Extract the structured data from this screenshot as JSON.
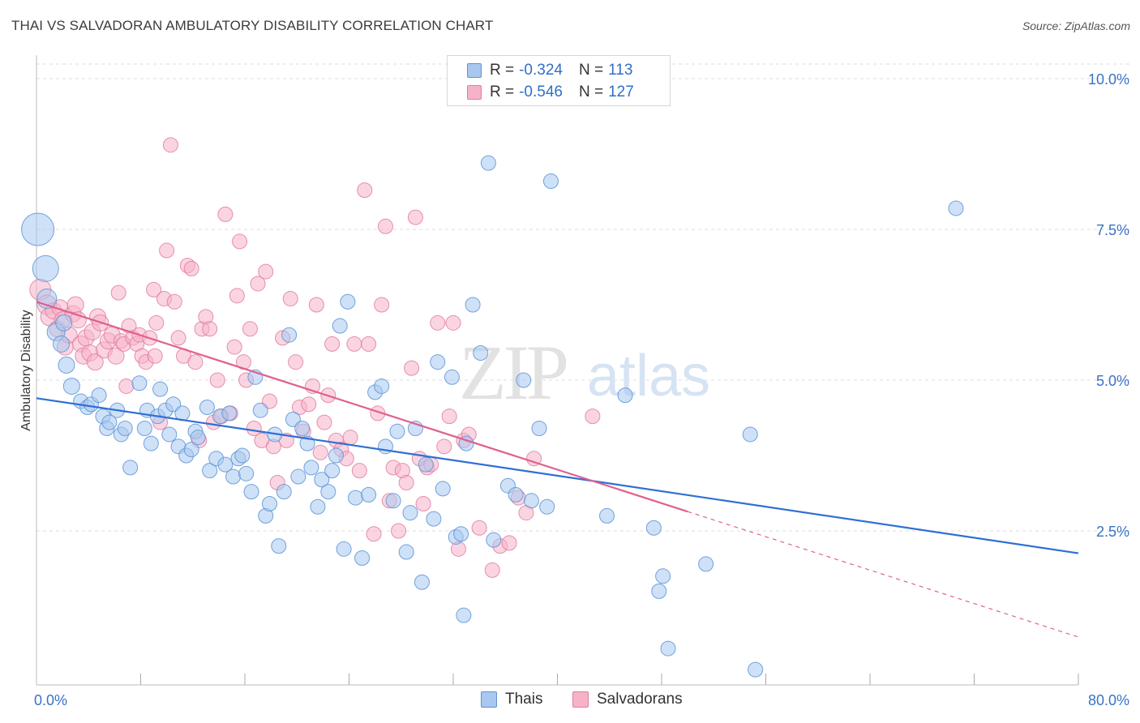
{
  "header": {
    "title": "THAI VS SALVADORAN AMBULATORY DISABILITY CORRELATION CHART",
    "source": "Source: ZipAtlas.com"
  },
  "watermark": {
    "zip": "ZIP",
    "atlas": "atlas"
  },
  "legend": {
    "thai": {
      "r_label": "R =",
      "r_value": "-0.324",
      "n_label": "N =",
      "n_value": "113"
    },
    "salvadoran": {
      "r_label": "R =",
      "r_value": "-0.546",
      "n_label": "N =",
      "n_value": "127"
    }
  },
  "bottom_legend": {
    "thai": "Thais",
    "salvadoran": "Salvadorans"
  },
  "colors": {
    "thai_fill": "#a8c8f0",
    "thai_stroke": "#5b93d6",
    "thai_line": "#2f6fd4",
    "salv_fill": "#f6b3c8",
    "salv_stroke": "#e27d9f",
    "salv_line": "#e0608e",
    "axis_text": "#3a72c8",
    "grid": "#dddddd"
  },
  "chart_data": {
    "type": "scatter",
    "title": "THAI VS SALVADORAN AMBULATORY DISABILITY CORRELATION CHART",
    "xlabel": "",
    "ylabel": "Ambulatory Disability",
    "xlim": [
      0,
      80
    ],
    "ylim": [
      0,
      10.5
    ],
    "x_tick_labels": [
      {
        "value": 0,
        "label": "0.0%"
      },
      {
        "value": 80,
        "label": "80.0%"
      }
    ],
    "y_tick_labels": [
      {
        "value": 2.5,
        "label": "2.5%"
      },
      {
        "value": 5.0,
        "label": "5.0%"
      },
      {
        "value": 7.5,
        "label": "7.5%"
      },
      {
        "value": 10.0,
        "label": "10.0%"
      }
    ],
    "grid": true,
    "legend_position": "top-center",
    "series": [
      {
        "name": "Thais",
        "trend": {
          "x": [
            0,
            80
          ],
          "y": [
            4.7,
            2.13
          ]
        },
        "points": [
          [
            0.1,
            7.5,
            20
          ],
          [
            0.7,
            6.85,
            16
          ],
          [
            0.8,
            6.35,
            12
          ],
          [
            1.5,
            5.8,
            11
          ],
          [
            1.9,
            5.6,
            10
          ],
          [
            2.1,
            5.95,
            10
          ],
          [
            2.3,
            5.25,
            10
          ],
          [
            2.7,
            4.9,
            10
          ],
          [
            3.4,
            4.65,
            9
          ],
          [
            3.9,
            4.55,
            9
          ],
          [
            4.2,
            4.6,
            9
          ],
          [
            4.8,
            4.75,
            9
          ],
          [
            5.1,
            4.4,
            9
          ],
          [
            5.4,
            4.2,
            9
          ],
          [
            5.6,
            4.3,
            9
          ],
          [
            6.2,
            4.5,
            9
          ],
          [
            6.5,
            4.1,
            9
          ],
          [
            6.8,
            4.2,
            9
          ],
          [
            7.2,
            3.55,
            9
          ],
          [
            7.9,
            4.95,
            9
          ],
          [
            8.3,
            4.2,
            9
          ],
          [
            8.5,
            4.5,
            9
          ],
          [
            8.8,
            3.95,
            9
          ],
          [
            9.3,
            4.4,
            9
          ],
          [
            9.5,
            4.85,
            9
          ],
          [
            9.9,
            4.5,
            9
          ],
          [
            10.2,
            4.1,
            9
          ],
          [
            10.5,
            4.6,
            9
          ],
          [
            10.9,
            3.9,
            9
          ],
          [
            11.2,
            4.45,
            9
          ],
          [
            11.5,
            3.75,
            9
          ],
          [
            11.9,
            3.85,
            9
          ],
          [
            12.2,
            4.15,
            9
          ],
          [
            12.4,
            4.05,
            9
          ],
          [
            13.1,
            4.55,
            9
          ],
          [
            13.3,
            3.5,
            9
          ],
          [
            13.8,
            3.7,
            9
          ],
          [
            14.1,
            4.4,
            9
          ],
          [
            14.5,
            3.6,
            9
          ],
          [
            14.8,
            4.45,
            9
          ],
          [
            15.1,
            3.4,
            9
          ],
          [
            15.5,
            3.7,
            9
          ],
          [
            15.8,
            3.75,
            9
          ],
          [
            16.1,
            3.45,
            9
          ],
          [
            16.5,
            3.15,
            9
          ],
          [
            16.8,
            5.05,
            9
          ],
          [
            17.2,
            4.5,
            9
          ],
          [
            17.6,
            2.75,
            9
          ],
          [
            17.9,
            2.95,
            9
          ],
          [
            18.3,
            4.1,
            9
          ],
          [
            18.6,
            2.25,
            9
          ],
          [
            19.0,
            3.15,
            9
          ],
          [
            19.4,
            5.75,
            9
          ],
          [
            19.7,
            4.35,
            9
          ],
          [
            20.1,
            3.4,
            9
          ],
          [
            20.4,
            4.2,
            9
          ],
          [
            20.8,
            3.95,
            9
          ],
          [
            21.1,
            3.55,
            9
          ],
          [
            21.6,
            2.9,
            9
          ],
          [
            21.9,
            3.35,
            9
          ],
          [
            22.4,
            3.15,
            9
          ],
          [
            22.7,
            3.5,
            9
          ],
          [
            23.0,
            3.75,
            9
          ],
          [
            23.3,
            5.9,
            9
          ],
          [
            23.6,
            2.2,
            9
          ],
          [
            23.9,
            6.3,
            9
          ],
          [
            24.5,
            3.05,
            9
          ],
          [
            25.0,
            2.05,
            9
          ],
          [
            25.5,
            3.1,
            9
          ],
          [
            26.0,
            4.8,
            9
          ],
          [
            26.5,
            4.9,
            9
          ],
          [
            26.8,
            3.9,
            9
          ],
          [
            27.4,
            3.0,
            9
          ],
          [
            27.7,
            4.15,
            9
          ],
          [
            28.4,
            2.15,
            9
          ],
          [
            28.7,
            2.8,
            9
          ],
          [
            29.1,
            4.2,
            9
          ],
          [
            29.6,
            1.65,
            9
          ],
          [
            29.9,
            3.6,
            9
          ],
          [
            30.5,
            2.7,
            9
          ],
          [
            30.8,
            5.3,
            9
          ],
          [
            31.2,
            3.2,
            9
          ],
          [
            31.9,
            5.05,
            9
          ],
          [
            32.2,
            2.4,
            9
          ],
          [
            32.6,
            2.45,
            9
          ],
          [
            32.8,
            1.1,
            9
          ],
          [
            33.0,
            3.95,
            9
          ],
          [
            33.5,
            6.25,
            9
          ],
          [
            34.1,
            5.45,
            9
          ],
          [
            34.7,
            8.6,
            9
          ],
          [
            35.1,
            2.35,
            9
          ],
          [
            36.2,
            3.25,
            9
          ],
          [
            36.8,
            3.1,
            9
          ],
          [
            37.4,
            5.0,
            9
          ],
          [
            38.0,
            3.0,
            9
          ],
          [
            38.6,
            4.2,
            9
          ],
          [
            39.2,
            2.9,
            9
          ],
          [
            39.5,
            8.3,
            9
          ],
          [
            43.8,
            2.75,
            9
          ],
          [
            45.2,
            4.75,
            9
          ],
          [
            47.4,
            2.55,
            9
          ],
          [
            47.8,
            1.5,
            9
          ],
          [
            48.1,
            1.75,
            9
          ],
          [
            48.5,
            0.55,
            9
          ],
          [
            51.4,
            1.95,
            9
          ],
          [
            54.8,
            4.1,
            9
          ],
          [
            55.2,
            0.2,
            9
          ],
          [
            70.6,
            7.85,
            9
          ]
        ]
      },
      {
        "name": "Salvadorans",
        "trend": {
          "x": [
            0,
            50
          ],
          "y": [
            6.3,
            2.82
          ]
        },
        "trend_ext": {
          "x": [
            50,
            80
          ],
          "y": [
            2.82,
            0.74
          ]
        },
        "points": [
          [
            0.3,
            6.5,
            13
          ],
          [
            0.8,
            6.25,
            12
          ],
          [
            1.0,
            6.05,
            11
          ],
          [
            1.3,
            6.15,
            10
          ],
          [
            1.6,
            5.85,
            10
          ],
          [
            1.8,
            6.2,
            10
          ],
          [
            2.0,
            6.0,
            10
          ],
          [
            2.2,
            5.55,
            10
          ],
          [
            2.5,
            5.75,
            10
          ],
          [
            2.8,
            6.1,
            10
          ],
          [
            3.0,
            6.25,
            10
          ],
          [
            3.2,
            6.0,
            10
          ],
          [
            3.4,
            5.6,
            10
          ],
          [
            3.6,
            5.4,
            10
          ],
          [
            3.8,
            5.7,
            10
          ],
          [
            4.1,
            5.45,
            10
          ],
          [
            4.3,
            5.8,
            10
          ],
          [
            4.5,
            5.3,
            10
          ],
          [
            4.7,
            6.05,
            10
          ],
          [
            4.9,
            5.95,
            10
          ],
          [
            5.2,
            5.5,
            10
          ],
          [
            5.5,
            5.65,
            10
          ],
          [
            5.8,
            5.75,
            10
          ],
          [
            6.1,
            5.4,
            10
          ],
          [
            6.3,
            6.45,
            9
          ],
          [
            6.5,
            5.65,
            9
          ],
          [
            6.7,
            5.6,
            9
          ],
          [
            6.9,
            4.9,
            9
          ],
          [
            7.1,
            5.9,
            9
          ],
          [
            7.4,
            5.7,
            9
          ],
          [
            7.7,
            5.6,
            9
          ],
          [
            7.9,
            5.75,
            9
          ],
          [
            8.1,
            5.4,
            9
          ],
          [
            8.4,
            5.3,
            9
          ],
          [
            8.7,
            5.7,
            9
          ],
          [
            9.0,
            6.5,
            9
          ],
          [
            9.2,
            5.95,
            9
          ],
          [
            9.5,
            4.3,
            9
          ],
          [
            9.8,
            6.35,
            9
          ],
          [
            10.0,
            7.15,
            9
          ],
          [
            10.3,
            8.9,
            9
          ],
          [
            10.6,
            6.3,
            9
          ],
          [
            10.9,
            5.7,
            9
          ],
          [
            11.3,
            5.4,
            9
          ],
          [
            11.6,
            6.9,
            9
          ],
          [
            11.9,
            6.85,
            9
          ],
          [
            12.2,
            5.3,
            9
          ],
          [
            12.5,
            4.0,
            9
          ],
          [
            12.7,
            5.85,
            9
          ],
          [
            13.0,
            6.05,
            9
          ],
          [
            13.3,
            5.85,
            9
          ],
          [
            13.6,
            4.3,
            9
          ],
          [
            13.9,
            5.0,
            9
          ],
          [
            14.2,
            4.4,
            9
          ],
          [
            14.5,
            7.75,
            9
          ],
          [
            14.9,
            4.45,
            9
          ],
          [
            15.2,
            5.55,
            9
          ],
          [
            15.4,
            6.4,
            9
          ],
          [
            15.6,
            7.3,
            9
          ],
          [
            15.9,
            5.3,
            9
          ],
          [
            16.1,
            5.0,
            9
          ],
          [
            16.4,
            5.85,
            9
          ],
          [
            16.7,
            4.2,
            9
          ],
          [
            17.0,
            6.6,
            9
          ],
          [
            17.3,
            4.0,
            9
          ],
          [
            17.6,
            6.8,
            9
          ],
          [
            17.9,
            4.65,
            9
          ],
          [
            18.2,
            3.9,
            9
          ],
          [
            18.5,
            3.3,
            9
          ],
          [
            18.9,
            5.7,
            9
          ],
          [
            19.2,
            4.0,
            9
          ],
          [
            19.5,
            6.35,
            9
          ],
          [
            19.9,
            5.3,
            9
          ],
          [
            20.2,
            4.55,
            9
          ],
          [
            20.5,
            4.15,
            9
          ],
          [
            20.9,
            4.6,
            9
          ],
          [
            21.2,
            4.9,
            9
          ],
          [
            21.5,
            6.25,
            9
          ],
          [
            21.8,
            3.8,
            9
          ],
          [
            22.1,
            4.3,
            9
          ],
          [
            22.4,
            4.75,
            9
          ],
          [
            22.7,
            5.6,
            9
          ],
          [
            23.0,
            4.0,
            9
          ],
          [
            23.4,
            3.85,
            9
          ],
          [
            23.8,
            3.7,
            9
          ],
          [
            24.1,
            4.05,
            9
          ],
          [
            24.4,
            5.6,
            9
          ],
          [
            24.8,
            3.5,
            9
          ],
          [
            25.2,
            8.15,
            9
          ],
          [
            25.5,
            5.6,
            9
          ],
          [
            25.9,
            2.45,
            9
          ],
          [
            26.2,
            4.45,
            9
          ],
          [
            26.5,
            6.25,
            9
          ],
          [
            26.8,
            7.55,
            9
          ],
          [
            27.1,
            3.0,
            9
          ],
          [
            27.4,
            3.55,
            9
          ],
          [
            27.8,
            2.5,
            9
          ],
          [
            28.1,
            3.5,
            9
          ],
          [
            28.4,
            3.3,
            9
          ],
          [
            28.8,
            5.2,
            9
          ],
          [
            29.1,
            7.7,
            9
          ],
          [
            29.4,
            3.7,
            9
          ],
          [
            29.7,
            2.95,
            9
          ],
          [
            30.0,
            3.55,
            9
          ],
          [
            30.3,
            3.6,
            9
          ],
          [
            30.8,
            5.95,
            9
          ],
          [
            31.3,
            3.9,
            9
          ],
          [
            31.7,
            4.4,
            9
          ],
          [
            32.0,
            5.95,
            9
          ],
          [
            32.4,
            2.2,
            9
          ],
          [
            32.8,
            4.0,
            9
          ],
          [
            33.2,
            4.1,
            9
          ],
          [
            34.0,
            2.55,
            9
          ],
          [
            35.0,
            1.85,
            9
          ],
          [
            35.6,
            2.25,
            9
          ],
          [
            36.3,
            2.3,
            9
          ],
          [
            37.0,
            3.05,
            9
          ],
          [
            37.6,
            2.8,
            9
          ],
          [
            38.2,
            3.7,
            9
          ],
          [
            42.7,
            4.4,
            9
          ],
          [
            9.1,
            5.4,
            9
          ]
        ]
      }
    ]
  }
}
